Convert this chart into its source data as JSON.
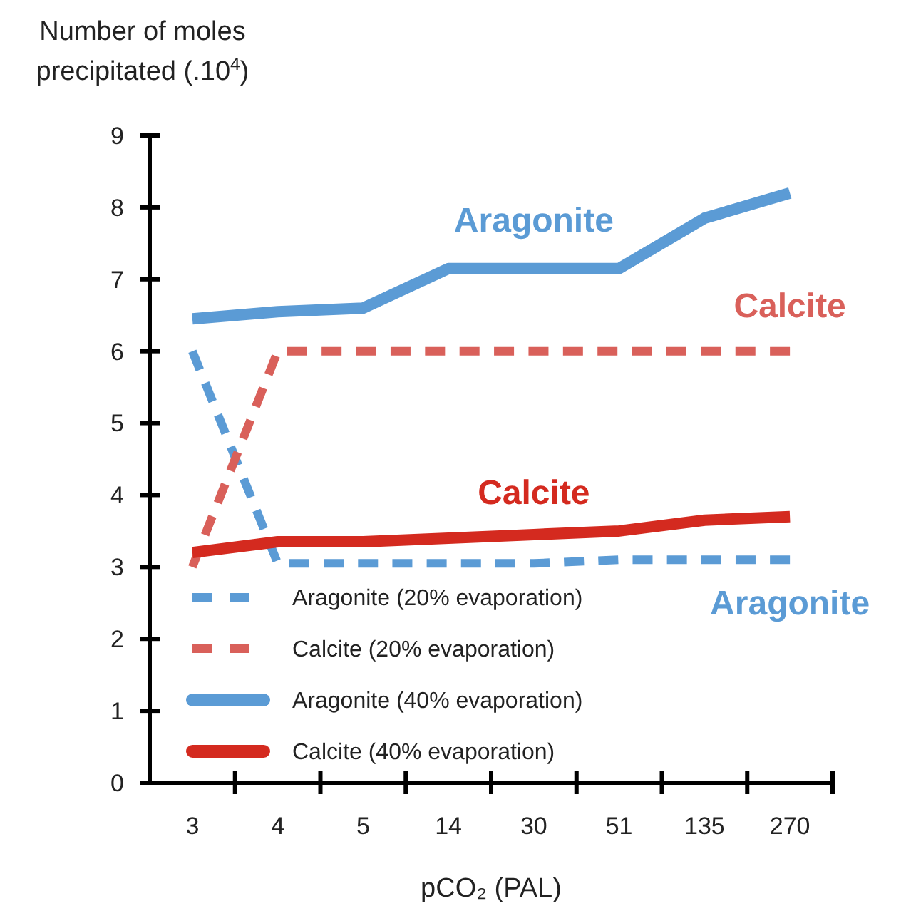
{
  "chart_data": {
    "type": "line",
    "xlabel": "pCO₂ (PAL)",
    "ylabel": "Number of moles precipitated (.10$^{4}$)",
    "categories": [
      "3",
      "4",
      "5",
      "14",
      "30",
      "51",
      "135",
      "270"
    ],
    "ylim": [
      0,
      9
    ],
    "yticks": [
      0,
      1,
      2,
      3,
      4,
      5,
      6,
      7,
      8,
      9
    ],
    "grid": false,
    "legend": "bottom left",
    "marker": "none",
    "series": [
      {
        "name": "Aragonite (20% evaporation)",
        "color": "#5b9bd5",
        "line_style": "dashed",
        "values": [
          6.0,
          3.05,
          3.05,
          3.05,
          3.05,
          3.1,
          3.1,
          3.1
        ]
      },
      {
        "name": "Calcite (20% evaporation)",
        "color": "#d9605a",
        "line_style": "dashed",
        "values": [
          3.0,
          6.0,
          6.0,
          6.0,
          6.0,
          6.0,
          6.0,
          6.0
        ]
      },
      {
        "name": "Aragonite (40% evaporation)",
        "color": "#5b9bd5",
        "line_style": "solid",
        "values": [
          6.45,
          6.55,
          6.6,
          7.15,
          7.15,
          7.15,
          7.85,
          8.2
        ]
      },
      {
        "name": "Calcite (40% evaporation)",
        "color": "#d42a1f",
        "line_style": "solid",
        "values": [
          3.2,
          3.35,
          3.35,
          3.4,
          3.45,
          3.5,
          3.65,
          3.7
        ]
      }
    ],
    "annotations": [
      "Aragonite",
      "Calcite",
      "Calcite",
      "Aragonite"
    ]
  }
}
